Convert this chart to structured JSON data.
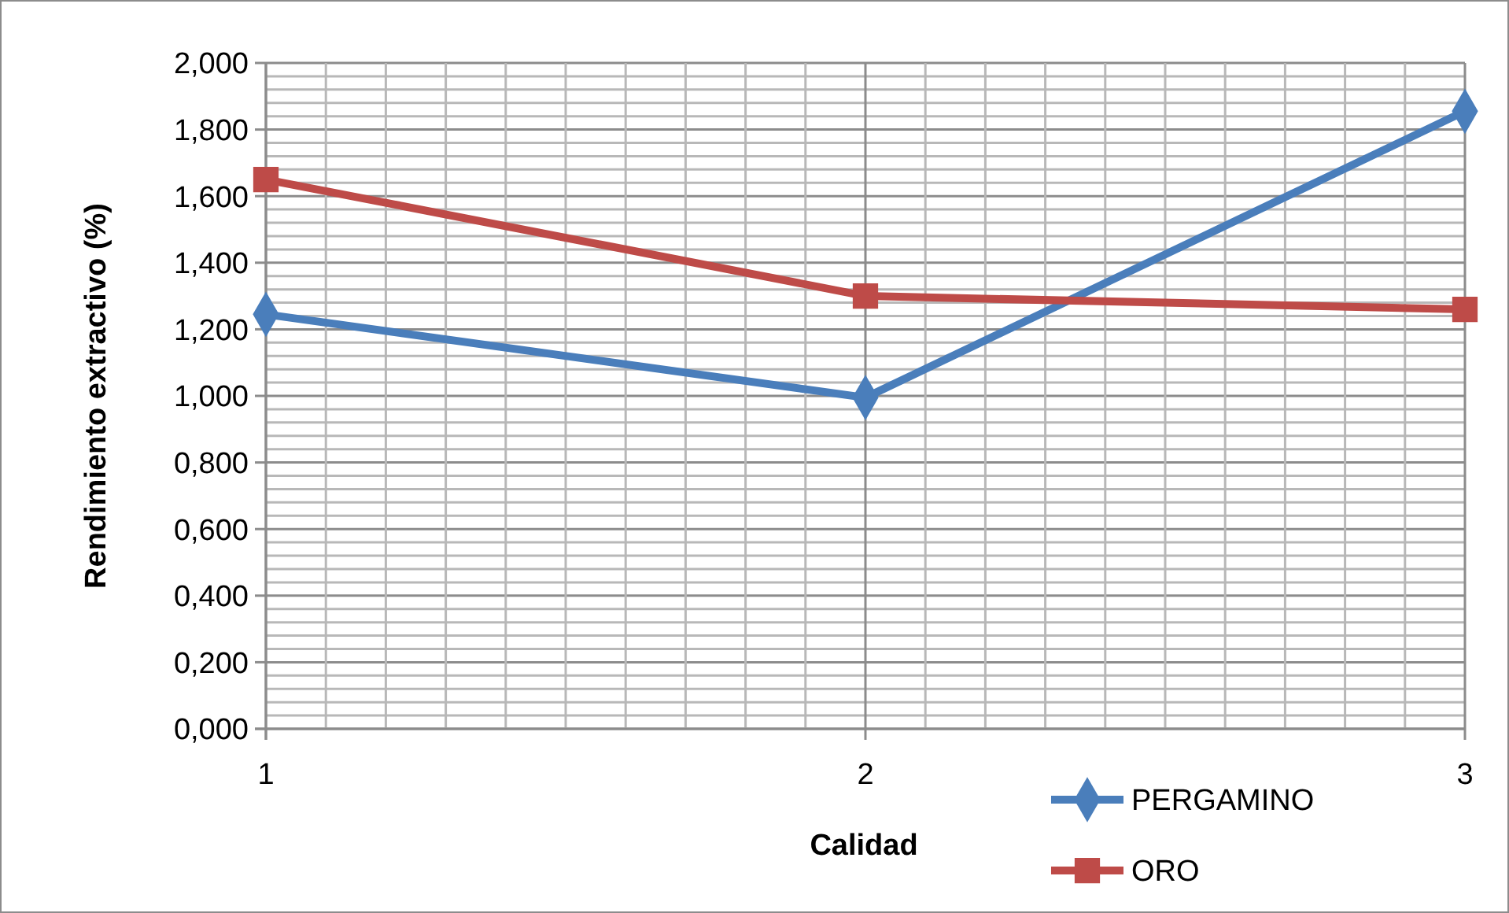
{
  "chart_data": {
    "type": "line",
    "xlabel": "Calidad",
    "ylabel": "Rendimiento extractivo (%)",
    "x": [
      1,
      2,
      3
    ],
    "series": [
      {
        "name": "PERGAMINO",
        "color": "#4a7ebb",
        "marker": "diamond",
        "values": [
          1.245,
          0.995,
          1.855
        ]
      },
      {
        "name": "ORO",
        "color": "#be4b48",
        "marker": "square",
        "values": [
          1.65,
          1.3,
          1.26
        ]
      }
    ],
    "xlim": [
      1,
      3
    ],
    "xticks": [
      1,
      2,
      3
    ],
    "ylim": [
      0,
      2
    ],
    "yticks": [
      {
        "value": 0,
        "label": "0,000"
      },
      {
        "value": 0.2,
        "label": "0,200"
      },
      {
        "value": 0.4,
        "label": "0,400"
      },
      {
        "value": 0.6,
        "label": "0,600"
      },
      {
        "value": 0.8,
        "label": "0,800"
      },
      {
        "value": 1,
        "label": "1,000"
      },
      {
        "value": 1.2,
        "label": "1,200"
      },
      {
        "value": 1.4,
        "label": "1,400"
      },
      {
        "value": 1.6,
        "label": "1,600"
      },
      {
        "value": 1.8,
        "label": "1,800"
      },
      {
        "value": 2,
        "label": "2,000"
      }
    ],
    "grid": true,
    "legend": "bottom right",
    "line_style": "solid"
  }
}
